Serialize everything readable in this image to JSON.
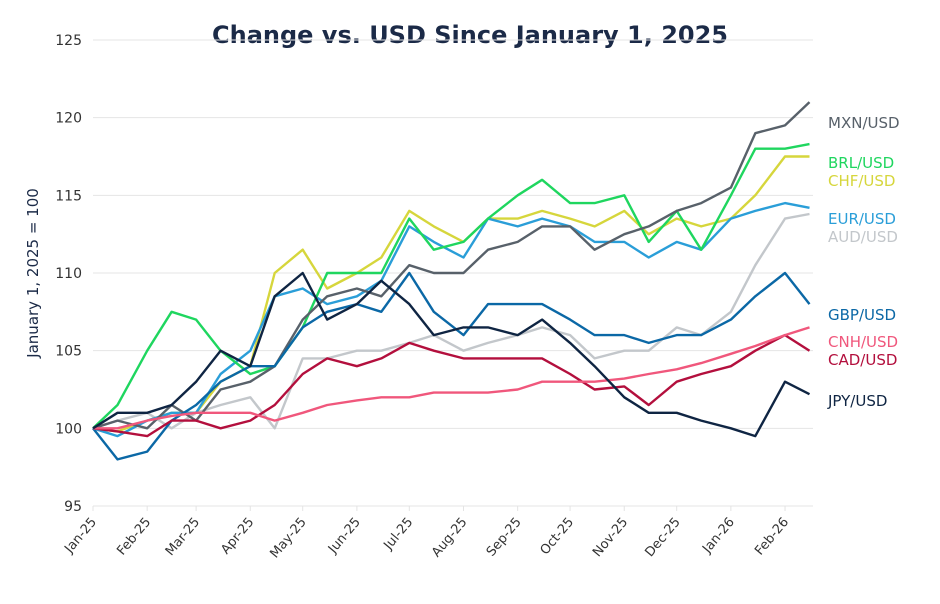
{
  "chart_data": {
    "type": "line",
    "title": "Change vs. USD Since January 1, 2025",
    "ylabel": "January 1, 2025 = 100",
    "xlabel": "",
    "ylim": [
      95,
      125
    ],
    "yticks": [
      95,
      100,
      105,
      110,
      115,
      120,
      125
    ],
    "xticks": [
      "Jan-25",
      "Feb-25",
      "Mar-25",
      "Apr-25",
      "May-25",
      "Jun-25",
      "Jul-25",
      "Aug-25",
      "Sep-25",
      "Oct-25",
      "Nov-25",
      "Dec-25",
      "Jan-26",
      "Feb-26"
    ],
    "xtick_dates": [
      "2025-01-01",
      "2025-02-01",
      "2025-03-01",
      "2025-04-01",
      "2025-05-01",
      "2025-06-01",
      "2025-07-01",
      "2025-08-01",
      "2025-09-01",
      "2025-10-01",
      "2025-11-01",
      "2025-12-01",
      "2026-01-01",
      "2026-02-01"
    ],
    "xlim": [
      "2025-01-01",
      "2026-02-17"
    ],
    "grid": "horizontal",
    "legend": "direct labels at right",
    "x": [
      "2025-01-01",
      "2025-01-15",
      "2025-02-01",
      "2025-02-15",
      "2025-03-01",
      "2025-03-15",
      "2025-04-01",
      "2025-04-15",
      "2025-05-01",
      "2025-05-15",
      "2025-06-01",
      "2025-06-15",
      "2025-07-01",
      "2025-07-15",
      "2025-08-01",
      "2025-08-15",
      "2025-09-01",
      "2025-09-15",
      "2025-10-01",
      "2025-10-15",
      "2025-11-01",
      "2025-11-15",
      "2025-12-01",
      "2025-12-15",
      "2026-01-01",
      "2026-01-15",
      "2026-02-01",
      "2026-02-15"
    ],
    "series": [
      {
        "name": "MXN/USD",
        "color": "#58616a",
        "values": [
          100,
          100.5,
          100,
          101.5,
          100.5,
          102.5,
          103,
          104,
          107,
          108.5,
          109,
          108.5,
          110.5,
          110,
          110,
          111.5,
          112,
          113,
          113,
          111.5,
          112.5,
          113,
          114,
          114.5,
          115.5,
          119,
          119.5,
          121
        ]
      },
      {
        "name": "BRL/USD",
        "color": "#1fd65f",
        "values": [
          100,
          101.5,
          105,
          107.5,
          107,
          105,
          103.5,
          104,
          106.5,
          110,
          110,
          110,
          113.5,
          111.5,
          112,
          113.5,
          115,
          116,
          114.5,
          114.5,
          115,
          112,
          114,
          111.5,
          115,
          118,
          118,
          118.3
        ]
      },
      {
        "name": "CHF/USD",
        "color": "#d6d63c",
        "values": [
          100,
          99.8,
          100.5,
          101,
          101,
          103,
          104,
          110,
          111.5,
          109,
          110,
          111,
          114,
          113,
          112,
          113.5,
          113.5,
          114,
          113.5,
          113,
          114,
          112.5,
          113.5,
          113,
          113.5,
          115,
          117.5,
          117.5
        ]
      },
      {
        "name": "EUR/USD",
        "color": "#2a9ed8",
        "values": [
          100,
          99.5,
          100.5,
          101,
          101,
          103.5,
          105,
          108.5,
          109,
          108,
          108.5,
          109.5,
          113,
          112,
          111,
          113.5,
          113,
          113.5,
          113,
          112,
          112,
          111,
          112,
          111.5,
          113.5,
          114,
          114.5,
          114.2
        ]
      },
      {
        "name": "AUD/USD",
        "color": "#c3c7cb",
        "values": [
          100,
          100.5,
          101,
          100,
          101,
          101.5,
          102,
          100,
          104.5,
          104.5,
          105,
          105,
          105.5,
          106,
          105,
          105.5,
          106,
          106.5,
          106,
          104.5,
          105,
          105,
          106.5,
          106,
          107.5,
          110.5,
          113.5,
          113.8
        ]
      },
      {
        "name": "GBP/USD",
        "color": "#0b68a6",
        "values": [
          100,
          98,
          98.5,
          100.5,
          101.5,
          103,
          104,
          104,
          106.5,
          107.5,
          108,
          107.5,
          110,
          107.5,
          106,
          108,
          108,
          108,
          107,
          106,
          106,
          105.5,
          106,
          106,
          107,
          108.5,
          110,
          108
        ]
      },
      {
        "name": "CNH/USD",
        "color": "#f0577c",
        "values": [
          100,
          100,
          100.5,
          100.8,
          101,
          101,
          101,
          100.5,
          101,
          101.5,
          101.8,
          102,
          102,
          102.3,
          102.3,
          102.3,
          102.5,
          103,
          103,
          103,
          103.2,
          103.5,
          103.8,
          104.2,
          104.8,
          105.3,
          106,
          106.5
        ]
      },
      {
        "name": "CAD/USD",
        "color": "#b30f3d",
        "values": [
          100,
          99.8,
          99.5,
          100.5,
          100.5,
          100,
          100.5,
          101.5,
          103.5,
          104.5,
          104,
          104.5,
          105.5,
          105,
          104.5,
          104.5,
          104.5,
          104.5,
          103.5,
          102.5,
          102.7,
          101.5,
          103,
          103.5,
          104,
          105,
          106,
          105
        ]
      },
      {
        "name": "JPY/USD",
        "color": "#0f2543",
        "values": [
          100,
          101,
          101,
          101.5,
          103,
          105,
          104,
          108.5,
          110,
          107,
          108,
          109.5,
          108,
          106,
          106.5,
          106.5,
          106,
          107,
          105.5,
          104,
          102,
          101,
          101,
          100.5,
          100,
          99.5,
          103,
          102.2
        ]
      }
    ]
  }
}
